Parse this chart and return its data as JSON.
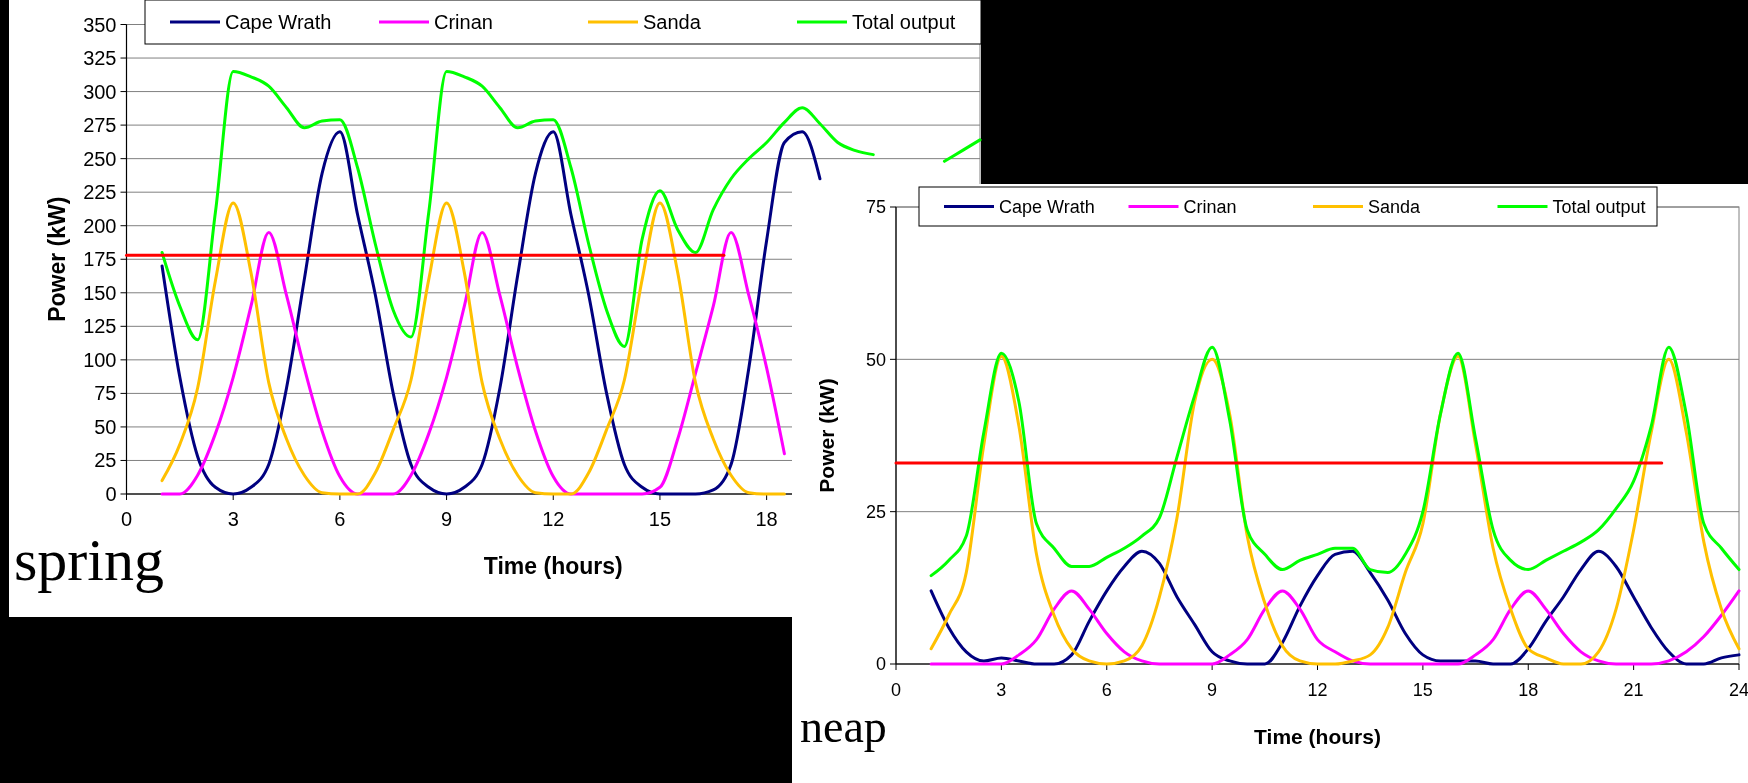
{
  "chart_data": [
    {
      "type": "line",
      "xlabel": "Time (hours)",
      "ylabel": "Power (kW)",
      "xlim": [
        0,
        24
      ],
      "xticks": [
        0,
        3,
        6,
        9,
        12,
        15,
        18
      ],
      "ylim": [
        0,
        350
      ],
      "yticks": [
        0,
        25,
        50,
        75,
        100,
        125,
        150,
        175,
        200,
        225,
        250,
        275,
        300,
        325,
        350
      ],
      "grid": "y",
      "legend": "top",
      "annotations": [
        "spring"
      ],
      "x": [
        1,
        1.5,
        2,
        2.5,
        3,
        3.5,
        4,
        4.5,
        5,
        5.5,
        6,
        6.5,
        7,
        7.5,
        8,
        8.5,
        9,
        9.5,
        10,
        10.5,
        11,
        11.5,
        12,
        12.5,
        13,
        13.5,
        14,
        14.5,
        15,
        15.5,
        16,
        16.5,
        17,
        17.5,
        18,
        18.5,
        19,
        19.5,
        20,
        20.5,
        21,
        21.5,
        22,
        22.5,
        23,
        23.5,
        24
      ],
      "series": [
        {
          "name": "Cape Wrath",
          "color": "#000080",
          "values": [
            170,
            87,
            28,
            5,
            0,
            5,
            22,
            79,
            160,
            239,
            270,
            208,
            148,
            75,
            22,
            5,
            0,
            5,
            22,
            79,
            163,
            239,
            270,
            208,
            148,
            75,
            22,
            5,
            0,
            0,
            0,
            3,
            22,
            94,
            189,
            262,
            270,
            235,
            null,
            null,
            null,
            null,
            null,
            null,
            null,
            null,
            null
          ]
        },
        {
          "name": "Crinan",
          "color": "#ff00ff",
          "values": [
            0,
            0,
            14,
            45,
            87,
            140,
            195,
            148,
            94,
            47,
            13,
            0,
            0,
            0,
            14,
            45,
            87,
            140,
            195,
            148,
            94,
            47,
            13,
            0,
            0,
            0,
            0,
            0,
            5,
            41,
            90,
            140,
            195,
            148,
            94,
            30,
            null,
            null,
            null,
            null,
            null,
            null,
            null,
            null,
            null,
            null,
            null
          ]
        },
        {
          "name": "Sanda",
          "color": "#ffc000",
          "values": [
            10,
            37,
            79,
            159,
            217,
            165,
            83,
            41,
            14,
            1,
            0,
            0,
            16,
            48,
            85,
            160,
            217,
            165,
            83,
            41,
            14,
            1,
            0,
            0,
            16,
            48,
            85,
            160,
            217,
            165,
            83,
            41,
            14,
            1,
            0,
            0,
            null,
            null,
            null,
            null,
            null,
            null,
            null,
            null,
            null,
            null,
            null
          ]
        },
        {
          "name": "Total output",
          "color": "#00ff00",
          "values": [
            180,
            140,
            115,
            210,
            315,
            311,
            304,
            288,
            273,
            278,
            279,
            243,
            186,
            137,
            117,
            210,
            315,
            311,
            304,
            288,
            273,
            278,
            279,
            243,
            186,
            137,
            110,
            190,
            226,
            197,
            180,
            212,
            235,
            250,
            262,
            277,
            288,
            276,
            262,
            256,
            253,
            null,
            null,
            null,
            248,
            256,
            264
          ]
        },
        {
          "type": "line",
          "color": "#ff0000",
          "x": [
            0,
            16.8
          ],
          "values": [
            178,
            178
          ]
        }
      ]
    },
    {
      "type": "line",
      "xlabel": "Time (hours)",
      "ylabel": "Power (kW)",
      "xlim": [
        0,
        24
      ],
      "xticks": [
        0,
        3,
        6,
        9,
        12,
        15,
        18,
        21,
        24
      ],
      "ylim": [
        0,
        75
      ],
      "yticks": [
        0,
        25,
        50,
        75
      ],
      "grid": "y",
      "legend": "top",
      "annotations": [
        "neap"
      ],
      "x": [
        1,
        1.5,
        2,
        2.5,
        3,
        3.5,
        4,
        4.5,
        5,
        5.5,
        6,
        6.5,
        7,
        7.5,
        8,
        8.5,
        9,
        9.5,
        10,
        10.5,
        11,
        11.5,
        12,
        12.5,
        13,
        13.5,
        14,
        14.5,
        15,
        15.5,
        16,
        16.5,
        17,
        17.5,
        18,
        18.5,
        19,
        19.5,
        20,
        20.5,
        21,
        21.5,
        22,
        22.5,
        23,
        23.5,
        24
      ],
      "series": [
        {
          "name": "Cape Wrath",
          "color": "#000080",
          "values": [
            12,
            6,
            2,
            0.5,
            1,
            0.5,
            0,
            0,
            1.5,
            7,
            12,
            16,
            18.5,
            16.5,
            11,
            6.5,
            2,
            0.5,
            0,
            0,
            3.5,
            9.5,
            14.5,
            18,
            18.5,
            15,
            10.5,
            5,
            1.5,
            0.5,
            0.5,
            0.5,
            0,
            0,
            2.5,
            7,
            11,
            15.5,
            18.5,
            16,
            11,
            6,
            2,
            0,
            0,
            1,
            1.5
          ]
        },
        {
          "name": "Crinan",
          "color": "#ff00ff",
          "values": [
            0,
            0,
            0,
            0,
            0,
            1.5,
            4,
            9,
            12,
            9,
            5,
            2,
            0.5,
            0,
            0,
            0,
            0,
            1.5,
            4,
            9,
            12,
            9,
            4,
            2,
            0.5,
            0,
            0,
            0,
            0,
            0,
            0,
            1.5,
            4,
            9,
            12,
            9,
            5,
            2,
            0.5,
            0,
            0,
            0,
            0.5,
            2,
            4.5,
            8,
            12
          ]
        },
        {
          "name": "Sanda",
          "color": "#ffc000",
          "values": [
            2.5,
            8,
            15,
            36,
            50.5,
            39,
            18,
            8,
            2.5,
            0.5,
            0,
            0.5,
            3,
            11,
            24,
            43,
            50,
            41,
            21,
            10,
            3,
            0.5,
            0,
            0,
            0.5,
            1.5,
            6,
            15,
            23,
            41,
            50.5,
            36,
            19,
            9,
            2.5,
            1,
            0,
            0,
            2,
            9,
            22,
            38,
            50,
            38,
            20,
            9,
            2.5
          ]
        },
        {
          "name": "Total output",
          "color": "#00ff00",
          "values": [
            14.5,
            17,
            21,
            38,
            51,
            43,
            23,
            19,
            16,
            16,
            17.5,
            19,
            21,
            24,
            34,
            44,
            52,
            40,
            22,
            18,
            15.5,
            17,
            18,
            19,
            19,
            15.5,
            15,
            18,
            25,
            41,
            51,
            37,
            22,
            17,
            15.5,
            17,
            18.5,
            20,
            22,
            25.5,
            30,
            39,
            52,
            41,
            23,
            19,
            15.5
          ]
        },
        {
          "type": "line",
          "color": "#ff0000",
          "x": [
            0,
            21.8
          ],
          "values": [
            33,
            33
          ]
        }
      ]
    }
  ]
}
